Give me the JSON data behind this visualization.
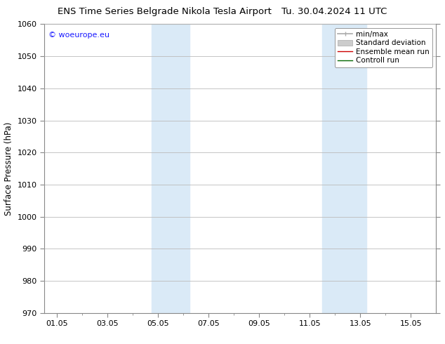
{
  "title_left": "ENS Time Series Belgrade Nikola Tesla Airport",
  "title_right": "Tu. 30.04.2024 11 UTC",
  "ylabel": "Surface Pressure (hPa)",
  "ylim": [
    970,
    1060
  ],
  "yticks": [
    970,
    980,
    990,
    1000,
    1010,
    1020,
    1030,
    1040,
    1050,
    1060
  ],
  "xtick_labels": [
    "01.05",
    "03.05",
    "05.05",
    "07.05",
    "09.05",
    "11.05",
    "13.05",
    "15.05"
  ],
  "xtick_positions": [
    0,
    2,
    4,
    6,
    8,
    10,
    12,
    14
  ],
  "xlim": [
    -0.5,
    15.0
  ],
  "shaded_bands": [
    {
      "x_start": 3.75,
      "x_end": 5.25,
      "color": "#daeaf7"
    },
    {
      "x_start": 10.5,
      "x_end": 12.25,
      "color": "#daeaf7"
    }
  ],
  "watermark_text": "© woeurope.eu",
  "watermark_color": "#1a1aff",
  "bg_color": "#ffffff",
  "plot_bg_color": "#ffffff",
  "grid_color": "#bbbbbb",
  "title_fontsize": 9.5,
  "axis_label_fontsize": 8.5,
  "tick_fontsize": 8,
  "legend_fontsize": 7.5
}
